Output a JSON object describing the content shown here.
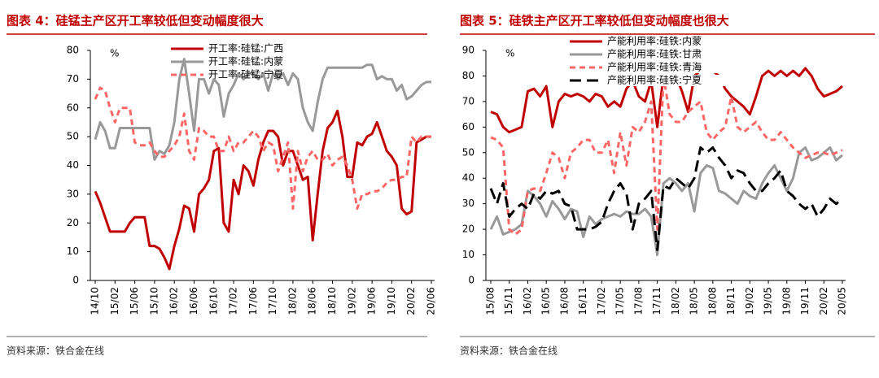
{
  "chart_data": [
    {
      "type": "line",
      "title": "图表 4：硅锰主产区开工率较低但变动幅度很大",
      "unit_label": "%",
      "source": "资料来源：铁合金在线",
      "categories": [
        "14/10",
        null,
        null,
        null,
        "15/02",
        null,
        null,
        null,
        "15/06",
        null,
        null,
        null,
        "15/10",
        null,
        null,
        null,
        "16/02",
        null,
        null,
        null,
        "16/06",
        null,
        null,
        null,
        "16/10",
        null,
        null,
        null,
        "17/02",
        null,
        null,
        null,
        "17/06",
        null,
        null,
        null,
        "17/10",
        null,
        null,
        null,
        "18/02",
        null,
        null,
        null,
        "18/06",
        null,
        null,
        null,
        "18/10",
        null,
        null,
        null,
        "19/02",
        null,
        null,
        null,
        "19/06",
        null,
        null,
        null,
        "19/10",
        null,
        null,
        null,
        "20/02",
        null,
        null,
        null,
        "20/06"
      ],
      "ylim": [
        0,
        80
      ],
      "yticks": [
        0,
        10,
        20,
        30,
        40,
        50,
        60,
        70,
        80
      ],
      "legend": "top-center",
      "series": [
        {
          "name": "开工率:硅锰:广西",
          "color": "#c00000",
          "line_style": "solid",
          "values": [
            31,
            27,
            22,
            17,
            17,
            17,
            17,
            20,
            22,
            22,
            22,
            12,
            12,
            11,
            8,
            4,
            12,
            18,
            26,
            25,
            17,
            30,
            32,
            35,
            45,
            46,
            20,
            17,
            35,
            30,
            40,
            38,
            33,
            42,
            48,
            52,
            52,
            50,
            40,
            45,
            45,
            40,
            35,
            36,
            14,
            30,
            45,
            53,
            55,
            59,
            50,
            36,
            36,
            48,
            47,
            50,
            51,
            55,
            50,
            45,
            43,
            40,
            25,
            23,
            24,
            48,
            49,
            50,
            50
          ]
        },
        {
          "name": "开工率:硅锰:内蒙",
          "color": "#999999",
          "line_style": "solid",
          "values": [
            49,
            55,
            52,
            46,
            46,
            53,
            53,
            53,
            53,
            53,
            53,
            53,
            42,
            45,
            44,
            47,
            55,
            70,
            77,
            65,
            52,
            70,
            70,
            65,
            70,
            68,
            57,
            65,
            68,
            72,
            70,
            72,
            72,
            70,
            72,
            66,
            72,
            70,
            72,
            68,
            72,
            70,
            60,
            55,
            52,
            62,
            70,
            74,
            74,
            74,
            74,
            74,
            74,
            74,
            74,
            75,
            75,
            70,
            71,
            70,
            70,
            66,
            68,
            63,
            64,
            66,
            68,
            69,
            69
          ]
        },
        {
          "name": "开工率:硅锰:宁夏",
          "color": "#ff6666",
          "line_style": "dashed",
          "values": [
            63,
            67,
            66,
            60,
            55,
            60,
            60,
            60,
            48,
            47,
            47,
            48,
            45,
            43,
            43,
            45,
            47,
            50,
            58,
            45,
            42,
            53,
            52,
            50,
            50,
            45,
            45,
            50,
            45,
            48,
            48,
            50,
            52,
            50,
            45,
            48,
            47,
            38,
            43,
            48,
            25,
            45,
            38,
            43,
            45,
            42,
            42,
            44,
            40,
            42,
            43,
            40,
            35,
            25,
            30,
            30,
            31,
            31,
            32,
            34,
            35,
            35,
            36,
            36,
            50,
            48,
            50,
            50,
            50
          ]
        }
      ]
    },
    {
      "type": "line",
      "title": "图表 5：硅铁主产区开工率较低但变动幅度也很大",
      "unit_label": "%",
      "source": "资料来源：铁合金在线",
      "categories": [
        "15/08",
        null,
        null,
        "15/11",
        null,
        null,
        "16/02",
        null,
        null,
        "16/05",
        null,
        null,
        "16/08",
        null,
        null,
        "16/11",
        null,
        null,
        "17/02",
        null,
        null,
        "17/05",
        null,
        null,
        "17/08",
        null,
        null,
        "17/11",
        null,
        null,
        "18/02",
        null,
        null,
        "18/05",
        null,
        null,
        "18/08",
        null,
        null,
        "18/11",
        null,
        null,
        "19/02",
        null,
        null,
        "19/05",
        null,
        null,
        "19/08",
        null,
        null,
        "19/11",
        null,
        null,
        "20/02",
        null,
        null,
        "20/05"
      ],
      "ylim": [
        0,
        90
      ],
      "yticks": [
        0,
        10,
        20,
        30,
        40,
        50,
        60,
        70,
        80,
        90
      ],
      "legend": "top-left",
      "series": [
        {
          "name": "产能利用率:硅铁:内蒙",
          "color": "#c00000",
          "line_style": "solid",
          "values": [
            66,
            65,
            60,
            58,
            59,
            60,
            74,
            75,
            72,
            76,
            60,
            70,
            73,
            72,
            73,
            72,
            70,
            73,
            72,
            68,
            70,
            68,
            75,
            78,
            72,
            70,
            78,
            60,
            80,
            78,
            80,
            74,
            66,
            80,
            82,
            82,
            82,
            80,
            75,
            72,
            70,
            68,
            65,
            72,
            80,
            82,
            80,
            82,
            80,
            82,
            80,
            83,
            80,
            75,
            72,
            73,
            74,
            76
          ]
        },
        {
          "name": "产能利用率:硅铁:甘肃",
          "color": "#999999",
          "line_style": "solid",
          "values": [
            20,
            25,
            18,
            19,
            20,
            22,
            35,
            33,
            30,
            25,
            31,
            28,
            24,
            28,
            27,
            17,
            25,
            22,
            24,
            25,
            26,
            25,
            27,
            26,
            26,
            28,
            25,
            10,
            38,
            40,
            38,
            35,
            38,
            27,
            42,
            45,
            44,
            35,
            34,
            32,
            30,
            35,
            33,
            32,
            38,
            42,
            45,
            40,
            35,
            40,
            50,
            52,
            47,
            48,
            50,
            52,
            47,
            49
          ]
        },
        {
          "name": "产能利用率:硅铁:青海",
          "color": "#ff6666",
          "line_style": "dashed",
          "values": [
            56,
            55,
            52,
            20,
            18,
            20,
            35,
            36,
            35,
            42,
            50,
            48,
            40,
            50,
            52,
            55,
            55,
            50,
            50,
            55,
            42,
            58,
            45,
            60,
            58,
            62,
            70,
            20,
            80,
            65,
            62,
            62,
            66,
            68,
            70,
            58,
            55,
            58,
            60,
            72,
            60,
            58,
            60,
            62,
            58,
            55,
            55,
            58,
            55,
            52,
            50,
            48,
            49,
            50,
            50,
            49,
            50,
            51
          ]
        },
        {
          "name": "产能利用率:硅铁:宁夏",
          "color": "#000000",
          "line_style": "long-dashed",
          "values": [
            36,
            30,
            38,
            25,
            28,
            30,
            28,
            34,
            32,
            35,
            34,
            35,
            30,
            29,
            20,
            20,
            20,
            21,
            23,
            30,
            35,
            38,
            34,
            20,
            30,
            32,
            35,
            12,
            37,
            36,
            40,
            38,
            36,
            40,
            52,
            50,
            52,
            48,
            45,
            40,
            43,
            42,
            38,
            35,
            35,
            38,
            40,
            43,
            35,
            33,
            30,
            28,
            30,
            25,
            28,
            32,
            30,
            32
          ]
        }
      ]
    }
  ]
}
